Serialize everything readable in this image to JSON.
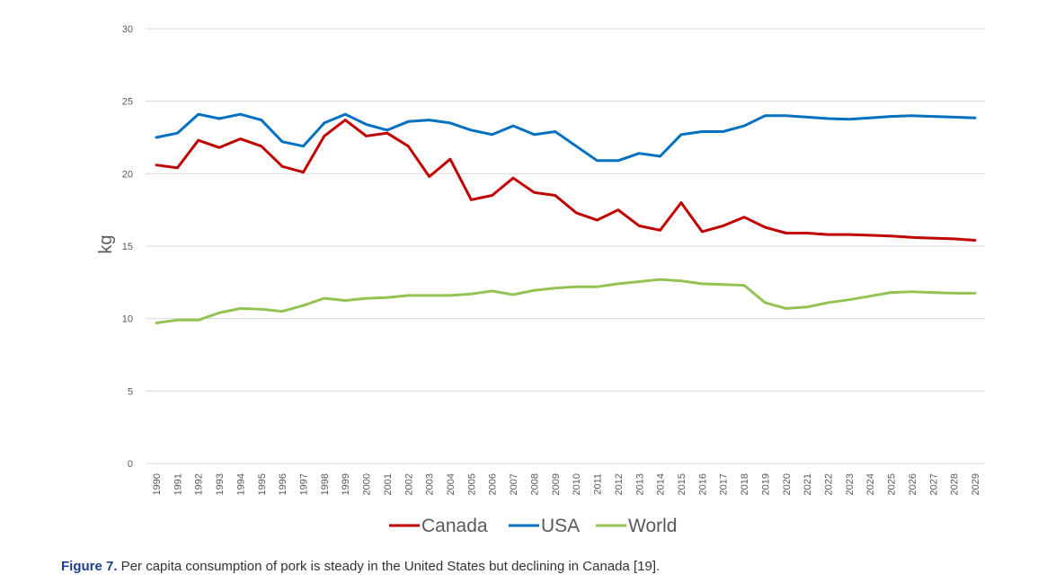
{
  "chart_data": {
    "type": "line",
    "title": "",
    "xlabel": "",
    "ylabel": "kg",
    "ylim": [
      0,
      30
    ],
    "yticks": [
      0,
      5,
      10,
      15,
      20,
      25,
      30
    ],
    "grid": true,
    "legend_position": "bottom-center",
    "x": [
      "1990",
      "1991",
      "1992",
      "1993",
      "1994",
      "1995",
      "1996",
      "1997",
      "1998",
      "1999",
      "2000",
      "2001",
      "2002",
      "2003",
      "2004",
      "2005",
      "2006",
      "2007",
      "2008",
      "2009",
      "2010",
      "2011",
      "2012",
      "2013",
      "2014",
      "2015",
      "2016",
      "2017",
      "2018",
      "2019",
      "2020",
      "2021",
      "2022",
      "2023",
      "2024",
      "2025",
      "2026",
      "2027",
      "2028",
      "2029"
    ],
    "series": [
      {
        "name": "Canada",
        "color": "#c00000",
        "values": [
          20.6,
          20.4,
          22.3,
          21.8,
          22.4,
          21.9,
          20.5,
          20.1,
          22.6,
          23.7,
          22.6,
          22.8,
          21.9,
          19.8,
          21.0,
          18.2,
          18.5,
          19.7,
          18.7,
          18.5,
          17.3,
          16.8,
          17.5,
          16.4,
          16.1,
          18.0,
          16.0,
          16.4,
          17.0,
          16.3,
          15.9,
          15.9,
          15.8,
          15.8,
          15.75,
          15.7,
          15.6,
          15.55,
          15.5,
          15.4
        ]
      },
      {
        "name": "USA",
        "color": "#0070c0",
        "values": [
          22.5,
          22.8,
          24.1,
          23.8,
          24.1,
          23.7,
          22.2,
          21.9,
          23.5,
          24.1,
          23.4,
          23.0,
          23.6,
          23.7,
          23.5,
          23.0,
          22.7,
          23.3,
          22.7,
          22.9,
          21.9,
          20.9,
          20.9,
          21.4,
          21.2,
          22.7,
          22.9,
          22.9,
          23.3,
          24.0,
          24.0,
          23.9,
          23.8,
          23.75,
          23.85,
          23.95,
          24.0,
          23.95,
          23.9,
          23.85
        ]
      },
      {
        "name": "World",
        "color": "#92c353",
        "values": [
          9.7,
          9.9,
          9.9,
          10.4,
          10.7,
          10.65,
          10.5,
          10.9,
          11.4,
          11.25,
          11.4,
          11.45,
          11.6,
          11.6,
          11.6,
          11.7,
          11.9,
          11.65,
          11.95,
          12.1,
          12.2,
          12.2,
          12.4,
          12.55,
          12.7,
          12.6,
          12.4,
          12.35,
          12.3,
          11.1,
          10.7,
          10.8,
          11.1,
          11.3,
          11.55,
          11.8,
          11.85,
          11.8,
          11.75,
          11.75
        ]
      }
    ]
  },
  "caption": {
    "label": "Figure 7.",
    "text": " Per capita consumption of pork is steady in the United States but declining in Canada [19]."
  }
}
